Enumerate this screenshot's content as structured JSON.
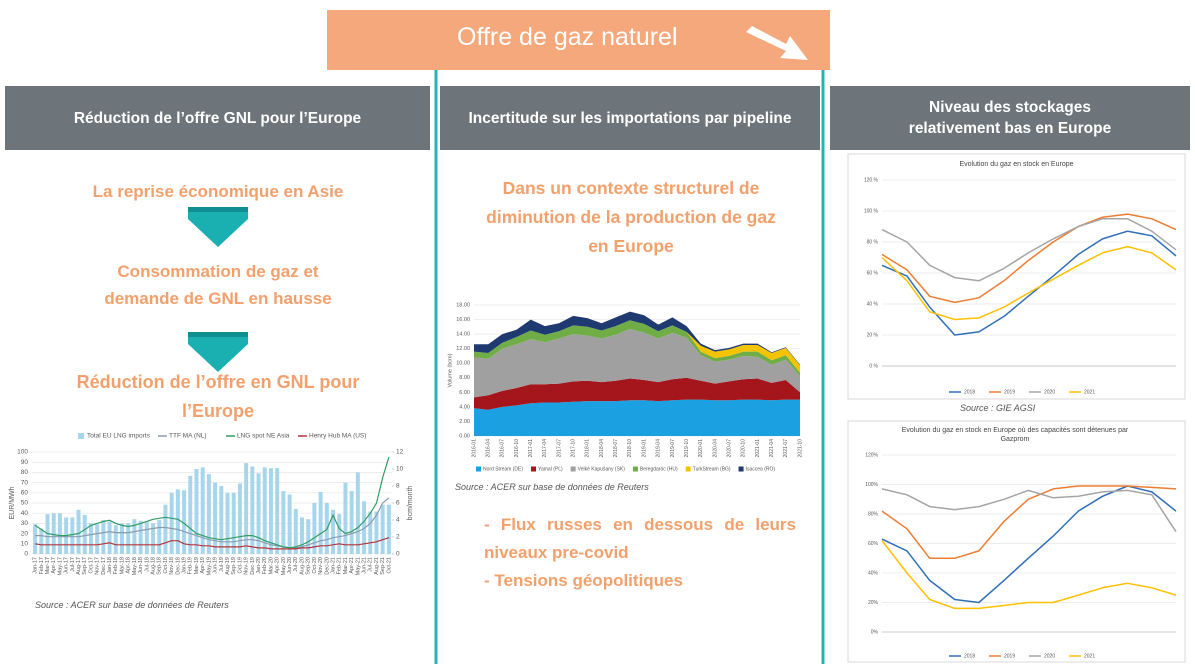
{
  "banner": "Offre de gaz naturel",
  "columns": [
    {
      "header": "Réduction de l’offre GNL pour l’Europe",
      "steps": [
        "La reprise économique en Asie",
        "Consommation de gaz et demande de GNL en hausse",
        "Réduction de l’offre en GNL pour l’Europe"
      ],
      "source": "Source : ACER sur base de données de Reuters"
    },
    {
      "header": "Incertitude sur les importations par pipeline",
      "intro": "Dans un contexte structurel de diminution de la production de gaz en Europe",
      "source": "Source : ACER sur base de données de Reuters",
      "points": [
        "- Flux russes en dessous de leurs niveaux pre-covid",
        "- Tensions géopolitiques"
      ]
    },
    {
      "header": "Niveau des stockages relativement bas en Europe",
      "source": "Source : GIE AGSI"
    }
  ],
  "chart_data": [
    {
      "type": "bar_line",
      "ylabel": "EUR/MWh",
      "y2label": "bcm/month",
      "ylim": [
        0,
        100
      ],
      "yticks": [
        0,
        10,
        20,
        30,
        40,
        50,
        60,
        70,
        80,
        90,
        100
      ],
      "y2lim": [
        0,
        12
      ],
      "y2ticks": [
        0,
        2,
        4,
        6,
        8,
        10,
        12
      ],
      "grid": true,
      "categories": [
        "Jan-17",
        "Feb-17",
        "Mar-17",
        "Apr-17",
        "May-17",
        "Jun-17",
        "Jul-17",
        "Aug-17",
        "Sep-17",
        "Oct-17",
        "Nov-17",
        "Dec-17",
        "Jan-18",
        "Feb-18",
        "Mar-18",
        "Apr-18",
        "May-18",
        "Jun-18",
        "Jul-18",
        "Aug-18",
        "Sep-18",
        "Oct-18",
        "Nov-18",
        "Dec-18",
        "Jan-19",
        "Feb-19",
        "Mar-19",
        "Apr-19",
        "May-19",
        "Jun-19",
        "Jul-19",
        "Aug-19",
        "Sep-19",
        "Oct-19",
        "Nov-19",
        "Dec-19",
        "Jan-20",
        "Feb-20",
        "Mar-20",
        "Apr-20",
        "May-20",
        "Jun-20",
        "Jul-20",
        "Aug-20",
        "Sep-20",
        "Oct-20",
        "Nov-20",
        "Dec-20",
        "Jan-21",
        "Feb-21",
        "Mar-21",
        "Apr-21",
        "May-21",
        "Jun-21",
        "Jul-21",
        "Aug-21",
        "Sep-21",
        "Oct-21"
      ],
      "series": [
        {
          "name": "Total EU LNG imports",
          "type": "bar",
          "axis": "y2",
          "color": "#a7d6ec",
          "values": [
            3.5,
            3,
            4.7,
            4.8,
            4.8,
            4.3,
            4.3,
            5.2,
            4.6,
            3.6,
            3.5,
            4.0,
            3.8,
            3.4,
            3.6,
            3.6,
            4.1,
            3.9,
            3.8,
            3.6,
            4.0,
            5.8,
            7.2,
            7.6,
            7.5,
            9.2,
            10.0,
            10.2,
            9.4,
            8.4,
            8.0,
            7.2,
            7.2,
            8.3,
            10.7,
            10.3,
            9.5,
            10.2,
            10.1,
            10.1,
            7.4,
            7.0,
            5.3,
            4.3,
            4.1,
            6.0,
            7.3,
            6.0,
            5.2,
            4.7,
            8.4,
            7.4,
            9.6,
            6.2,
            5.0,
            5.0,
            5.8,
            5.8
          ]
        },
        {
          "name": "TTF MA (NL)",
          "type": "line",
          "color": "#8c9bb0",
          "values": [
            18,
            18,
            17,
            17,
            17,
            17,
            17,
            17,
            18,
            19,
            20,
            21,
            22,
            21,
            21,
            21,
            22,
            23,
            24,
            25,
            26,
            26,
            25,
            24,
            22,
            20,
            18,
            16,
            14,
            13,
            12,
            12,
            12,
            13,
            14,
            14,
            13,
            11,
            9,
            8,
            7,
            6,
            6,
            7,
            9,
            11,
            13,
            14,
            16,
            17,
            18,
            20,
            22,
            25,
            30,
            38,
            50,
            55
          ]
        },
        {
          "name": "LNG spot NE Asia",
          "type": "line",
          "color": "#2f9e62",
          "values": [
            28,
            24,
            20,
            19,
            18,
            18,
            19,
            20,
            24,
            28,
            30,
            32,
            33,
            30,
            28,
            27,
            28,
            30,
            32,
            34,
            35,
            36,
            35,
            34,
            30,
            25,
            20,
            18,
            16,
            15,
            14,
            15,
            16,
            17,
            18,
            18,
            16,
            13,
            11,
            9,
            7,
            6,
            7,
            9,
            12,
            16,
            20,
            24,
            38,
            25,
            20,
            22,
            26,
            32,
            40,
            50,
            75,
            95
          ]
        },
        {
          "name": "Henry Hub MA (US)",
          "type": "line",
          "color": "#b5343a",
          "values": [
            10,
            9,
            9,
            9,
            9,
            9,
            9,
            9,
            9,
            9,
            9,
            10,
            11,
            9,
            9,
            9,
            9,
            9,
            9,
            9,
            9,
            11,
            13,
            13,
            10,
            9,
            9,
            8,
            8,
            7,
            7,
            7,
            7,
            7,
            8,
            7,
            6,
            6,
            5,
            5,
            5,
            5,
            5,
            6,
            6,
            7,
            8,
            8,
            9,
            10,
            9,
            9,
            9,
            10,
            11,
            12,
            14,
            16
          ]
        }
      ]
    },
    {
      "type": "stacked_area",
      "ylabel": "Volume (bcm)",
      "ylim": [
        0,
        18
      ],
      "yticks": [
        {
          "value": 0,
          "label": "0.00"
        },
        {
          "value": 2,
          "label": "2.00"
        },
        {
          "value": 4,
          "label": "4.00"
        },
        {
          "value": 6,
          "label": "6.00"
        },
        {
          "value": 8,
          "label": "8.00"
        },
        {
          "value": 10,
          "label": "10.00"
        },
        {
          "value": 12,
          "label": "12.00"
        },
        {
          "value": 14,
          "label": "14.00"
        },
        {
          "value": 16,
          "label": "16.00"
        },
        {
          "value": 18,
          "label": "18.00"
        }
      ],
      "grid": true,
      "categories": [
        "2016-01",
        "2016-04",
        "2016-07",
        "2016-10",
        "2017-01",
        "2017-04",
        "2017-07",
        "2017-10",
        "2018-01",
        "2018-04",
        "2018-07",
        "2018-10",
        "2019-01",
        "2019-04",
        "2019-07",
        "2019-10",
        "2020-01",
        "2020-04",
        "2020-07",
        "2020-10",
        "2021-01",
        "2021-04",
        "2021-07",
        "2021-10"
      ],
      "series": [
        {
          "name": "Nord Stream (DE)",
          "color": "#1ba1e2",
          "values": [
            3.8,
            3.6,
            4.0,
            4.2,
            4.5,
            4.6,
            4.6,
            4.7,
            4.8,
            4.8,
            4.8,
            4.9,
            4.9,
            4.8,
            4.9,
            5.0,
            5.0,
            4.9,
            4.9,
            5.0,
            5.0,
            4.9,
            5.0,
            5.0
          ]
        },
        {
          "name": "Yamal (PL)",
          "color": "#a5161c",
          "values": [
            1.5,
            2.0,
            2.2,
            2.4,
            2.6,
            2.5,
            2.6,
            2.8,
            2.8,
            2.6,
            2.8,
            3.0,
            2.8,
            2.6,
            2.9,
            3.0,
            2.6,
            2.3,
            2.6,
            2.8,
            2.9,
            2.4,
            2.7,
            1.0
          ]
        },
        {
          "name": "Velké Kapušany (SK)",
          "color": "#a0a0a0",
          "values": [
            5.5,
            5.0,
            5.8,
            6.0,
            6.2,
            5.8,
            6.2,
            6.5,
            6.2,
            6.0,
            6.3,
            6.8,
            6.5,
            6.0,
            6.4,
            5.5,
            3.5,
            3.0,
            3.0,
            3.2,
            3.0,
            2.5,
            2.8,
            2.2
          ]
        },
        {
          "name": "Beregdaróc (HU)",
          "color": "#70ad47",
          "values": [
            0.8,
            0.8,
            0.8,
            1.0,
            1.2,
            1.0,
            1.0,
            1.2,
            1.2,
            1.1,
            1.2,
            1.2,
            1.2,
            1.0,
            1.0,
            0.8,
            0.5,
            0.5,
            0.5,
            0.6,
            0.7,
            0.6,
            0.6,
            0.5
          ]
        },
        {
          "name": "TurkStream (BG)",
          "color": "#f5c400",
          "values": [
            0,
            0,
            0,
            0,
            0,
            0,
            0,
            0,
            0,
            0,
            0,
            0,
            0,
            0,
            0,
            0,
            0.8,
            0.9,
            0.9,
            0.9,
            0.9,
            1.0,
            1.0,
            1.0
          ]
        },
        {
          "name": "Isaccea (RO)",
          "color": "#1f3a70",
          "values": [
            1.0,
            1.2,
            1.2,
            1.0,
            1.5,
            1.2,
            1.1,
            1.3,
            1.2,
            1.0,
            1.2,
            1.2,
            1.2,
            0.9,
            1.1,
            0.8,
            0.3,
            0.2,
            0.2,
            0.2,
            0.2,
            0.1,
            0.1,
            0.1
          ]
        }
      ]
    },
    {
      "type": "line",
      "title": "Evolution du gaz en stock en Europe",
      "xlim": [
        1,
        365
      ],
      "x": [
        1,
        32,
        60,
        91,
        121,
        152,
        182,
        213,
        244,
        274,
        305,
        335,
        365
      ],
      "ylim": [
        0,
        120
      ],
      "yticks": [
        {
          "value": 0,
          "label": "0 %"
        },
        {
          "value": 20,
          "label": "20 %"
        },
        {
          "value": 40,
          "label": "40 %"
        },
        {
          "value": 60,
          "label": "60 %"
        },
        {
          "value": 80,
          "label": "80 %"
        },
        {
          "value": 100,
          "label": "100 %"
        },
        {
          "value": 120,
          "label": "120 %"
        }
      ],
      "grid": true,
      "series": [
        {
          "name": "2018",
          "color": "#2e6fb8",
          "values": [
            65,
            58,
            38,
            20,
            22,
            32,
            45,
            58,
            72,
            82,
            87,
            84,
            71
          ]
        },
        {
          "name": "2019",
          "color": "#ed7d31",
          "values": [
            72,
            62,
            45,
            41,
            44,
            55,
            68,
            80,
            90,
            96,
            98,
            95,
            88
          ]
        },
        {
          "name": "2020",
          "color": "#a5a5a5",
          "values": [
            88,
            80,
            65,
            57,
            55,
            63,
            73,
            82,
            90,
            95,
            95,
            87,
            75
          ]
        },
        {
          "name": "2021",
          "color": "#ffc000",
          "values": [
            70,
            55,
            35,
            30,
            31,
            38,
            47,
            56,
            65,
            73,
            77,
            73,
            62
          ]
        }
      ]
    },
    {
      "type": "line",
      "title": "Evolution du gaz en stock en Europe où des capacités sont détenues par Gazprom",
      "xlim": [
        1,
        365
      ],
      "x": [
        1,
        32,
        60,
        91,
        121,
        152,
        182,
        213,
        244,
        274,
        305,
        335,
        365
      ],
      "ylim": [
        0,
        120
      ],
      "yticks": [
        {
          "value": 0,
          "label": "0%"
        },
        {
          "value": 20,
          "label": "20%"
        },
        {
          "value": 40,
          "label": "40%"
        },
        {
          "value": 60,
          "label": "60%"
        },
        {
          "value": 80,
          "label": "80%"
        },
        {
          "value": 100,
          "label": "100%"
        },
        {
          "value": 120,
          "label": "120%"
        }
      ],
      "grid": true,
      "series": [
        {
          "name": "2018",
          "color": "#2e6fb8",
          "values": [
            63,
            55,
            35,
            22,
            20,
            35,
            50,
            65,
            82,
            92,
            99,
            95,
            82
          ]
        },
        {
          "name": "2019",
          "color": "#ed7d31",
          "values": [
            82,
            70,
            50,
            50,
            55,
            75,
            90,
            97,
            99,
            99,
            99,
            98,
            97
          ]
        },
        {
          "name": "2020",
          "color": "#a5a5a5",
          "values": [
            97,
            93,
            85,
            83,
            85,
            90,
            96,
            91,
            92,
            95,
            96,
            93,
            68
          ]
        },
        {
          "name": "2021",
          "color": "#ffc000",
          "values": [
            62,
            40,
            22,
            16,
            16,
            18,
            20,
            20,
            25,
            30,
            33,
            30,
            25
          ]
        }
      ]
    }
  ]
}
